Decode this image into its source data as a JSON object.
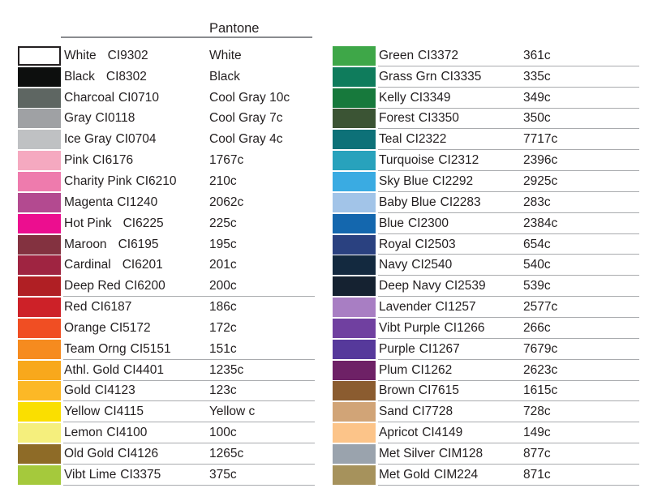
{
  "header": {
    "pantone_label": "Pantone"
  },
  "colors": {
    "text": "#231f20",
    "row_divider": "#a9abae",
    "header_rule": "#8a8c8f",
    "background": "#ffffff"
  },
  "chart_data": {
    "type": "table",
    "title": "Pantone",
    "columns": [
      "swatch",
      "name",
      "code",
      "pantone"
    ],
    "left_rows": [
      {
        "name": "White",
        "code": "CI9302",
        "pantone": "White",
        "hex": "#ffffff",
        "line": false,
        "gap": true,
        "border": true
      },
      {
        "name": "Black",
        "code": "CI8302",
        "pantone": "Black",
        "hex": "#0d0f0e",
        "line": false,
        "gap": true,
        "border": false
      },
      {
        "name": "Charcoal",
        "code": "CI0710",
        "pantone": "Cool Gray 10c",
        "hex": "#5e6662",
        "line": false,
        "gap": false,
        "border": false
      },
      {
        "name": "Gray",
        "code": "CI0118",
        "pantone": "Cool Gray 7c",
        "hex": "#9fa1a4",
        "line": false,
        "gap": false,
        "border": false
      },
      {
        "name": "Ice Gray",
        "code": "CI0704",
        "pantone": "Cool Gray 4c",
        "hex": "#bfc1c3",
        "line": false,
        "gap": false,
        "border": false
      },
      {
        "name": "Pink",
        "code": "CI6176",
        "pantone": "1767c",
        "hex": "#f5a9c0",
        "line": false,
        "gap": false,
        "border": false
      },
      {
        "name": "Charity Pink",
        "code": "CI6210",
        "pantone": "210c",
        "hex": "#ee7bad",
        "line": false,
        "gap": false,
        "border": false
      },
      {
        "name": "Magenta",
        "code": "CI1240",
        "pantone": "2062c",
        "hex": "#b34a90",
        "line": false,
        "gap": false,
        "border": false
      },
      {
        "name": "Hot Pink",
        "code": "CI6225",
        "pantone": "225c",
        "hex": "#ec0e8f",
        "line": false,
        "gap": true,
        "border": false
      },
      {
        "name": "Maroon",
        "code": "CI6195",
        "pantone": "195c",
        "hex": "#833240",
        "line": false,
        "gap": true,
        "border": false
      },
      {
        "name": "Cardinal",
        "code": "CI6201",
        "pantone": "201c",
        "hex": "#9f2441",
        "line": false,
        "gap": true,
        "border": false
      },
      {
        "name": "Deep Red",
        "code": "CI6200",
        "pantone": "200c",
        "hex": "#b01f24",
        "line": true,
        "gap": false,
        "border": false
      },
      {
        "name": "Red",
        "code": "CI6187",
        "pantone": "186c",
        "hex": "#cd2128",
        "line": false,
        "gap": false,
        "border": false
      },
      {
        "name": "Orange",
        "code": "CI5172",
        "pantone": "172c",
        "hex": "#f04e23",
        "line": false,
        "gap": false,
        "border": false
      },
      {
        "name": "Team Orng",
        "code": "CI5151",
        "pantone": "151c",
        "hex": "#f68b1f",
        "line": true,
        "gap": false,
        "border": false
      },
      {
        "name": "Athl. Gold",
        "code": "CI4401",
        "pantone": "1235c",
        "hex": "#f8a81c",
        "line": true,
        "gap": false,
        "border": false
      },
      {
        "name": "Gold",
        "code": "CI4123",
        "pantone": "123c",
        "hex": "#fcb826",
        "line": true,
        "gap": false,
        "border": false
      },
      {
        "name": "Yellow",
        "code": "CI4115",
        "pantone": "Yellow c",
        "hex": "#fadf00",
        "line": true,
        "gap": false,
        "border": false
      },
      {
        "name": "Lemon",
        "code": "CI4100",
        "pantone": "100c",
        "hex": "#f5ef7d",
        "line": true,
        "gap": false,
        "border": false
      },
      {
        "name": "Old Gold",
        "code": "CI4126",
        "pantone": "1265c",
        "hex": "#8e6b27",
        "line": true,
        "gap": false,
        "border": false
      },
      {
        "name": "Vibt Lime",
        "code": "CI3375",
        "pantone": "375c",
        "hex": "#a5c93c",
        "line": true,
        "gap": false,
        "border": false
      }
    ],
    "right_rows": [
      {
        "name": "Green",
        "code": "CI3372",
        "pantone": "361c",
        "hex": "#3ea748",
        "line": true,
        "gap": false,
        "border": false
      },
      {
        "name": "Grass Grn",
        "code": "CI3335",
        "pantone": "335c",
        "hex": "#0f7c5c",
        "line": true,
        "gap": false,
        "border": false
      },
      {
        "name": "Kelly",
        "code": "CI3349",
        "pantone": "349c",
        "hex": "#17793c",
        "line": true,
        "gap": false,
        "border": false
      },
      {
        "name": "Forest",
        "code": "CI3350",
        "pantone": "350c",
        "hex": "#3b5434",
        "line": true,
        "gap": false,
        "border": false
      },
      {
        "name": "Teal",
        "code": "CI2322",
        "pantone": "7717c",
        "hex": "#0d7178",
        "line": true,
        "gap": false,
        "border": false
      },
      {
        "name": "Turquoise",
        "code": "CI2312",
        "pantone": "2396c",
        "hex": "#28a2bc",
        "line": true,
        "gap": false,
        "border": false
      },
      {
        "name": "Sky Blue",
        "code": "CI2292",
        "pantone": "2925c",
        "hex": "#3aabe2",
        "line": true,
        "gap": false,
        "border": false
      },
      {
        "name": "Baby Blue",
        "code": "CI2283",
        "pantone": "283c",
        "hex": "#a2c4e8",
        "line": true,
        "gap": false,
        "border": false
      },
      {
        "name": "Blue",
        "code": "CI2300",
        "pantone": "2384c",
        "hex": "#1467ae",
        "line": true,
        "gap": false,
        "border": false
      },
      {
        "name": "Royal",
        "code": "CI2503",
        "pantone": "654c",
        "hex": "#2a4180",
        "line": true,
        "gap": false,
        "border": false
      },
      {
        "name": "Navy",
        "code": "CI2540",
        "pantone": "540c",
        "hex": "#13293f",
        "line": true,
        "gap": false,
        "border": false
      },
      {
        "name": "Deep Navy",
        "code": "CI2539",
        "pantone": "539c",
        "hex": "#152231",
        "line": true,
        "gap": false,
        "border": false
      },
      {
        "name": "Lavender",
        "code": "CI1257",
        "pantone": "2577c",
        "hex": "#a87ec3",
        "line": true,
        "gap": false,
        "border": false
      },
      {
        "name": "Vibt Purple",
        "code": "CI1266",
        "pantone": "266c",
        "hex": "#7040a0",
        "line": true,
        "gap": false,
        "border": false
      },
      {
        "name": "Purple",
        "code": "CI1267",
        "pantone": "7679c",
        "hex": "#56399b",
        "line": true,
        "gap": false,
        "border": false
      },
      {
        "name": "Plum",
        "code": "CI1262",
        "pantone": "2623c",
        "hex": "#6e2166",
        "line": true,
        "gap": false,
        "border": false
      },
      {
        "name": "Brown",
        "code": "CI7615",
        "pantone": "1615c",
        "hex": "#8b5c30",
        "line": true,
        "gap": false,
        "border": false
      },
      {
        "name": "Sand",
        "code": "CI7728",
        "pantone": "728c",
        "hex": "#d1a477",
        "line": true,
        "gap": false,
        "border": false
      },
      {
        "name": "Apricot",
        "code": "CI4149",
        "pantone": "149c",
        "hex": "#fcc489",
        "line": true,
        "gap": false,
        "border": false
      },
      {
        "name": "Met Silver",
        "code": "CIM128",
        "pantone": "877c",
        "hex": "#9aa3ad",
        "line": true,
        "gap": false,
        "border": false
      },
      {
        "name": "Met Gold",
        "code": "CIM224",
        "pantone": "871c",
        "hex": "#a6925c",
        "line": true,
        "gap": false,
        "border": false
      }
    ]
  }
}
